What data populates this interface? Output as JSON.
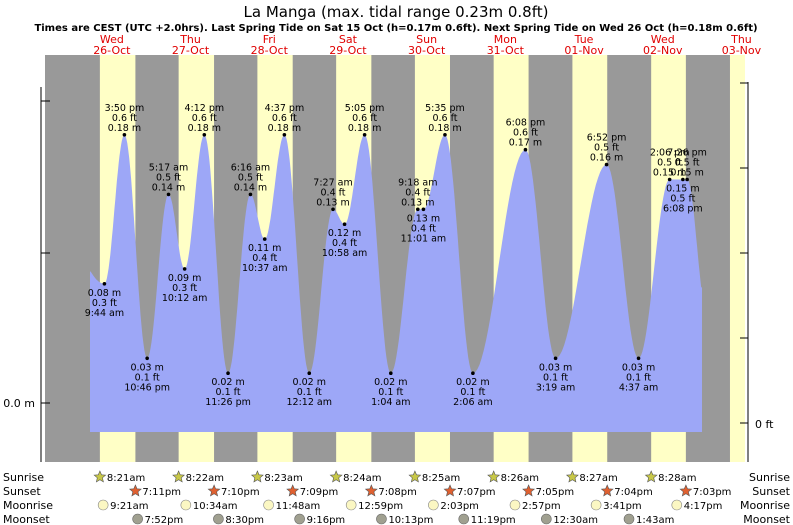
{
  "chart_data": {
    "type": "area",
    "title": "La Manga (max. tidal range 0.23m 0.8ft)",
    "subtitle": "Times are CEST (UTC +2.0hrs). Last Spring Tide on Sat 15 Oct (h=0.17m 0.6ft). Next Spring Tide on Wed 26 Oct (h=0.18m 0.6ft)",
    "days": [
      {
        "name": "Wed",
        "date": "26-Oct"
      },
      {
        "name": "Thu",
        "date": "27-Oct"
      },
      {
        "name": "Fri",
        "date": "28-Oct"
      },
      {
        "name": "Sat",
        "date": "29-Oct"
      },
      {
        "name": "Sun",
        "date": "30-Oct"
      },
      {
        "name": "Mon",
        "date": "31-Oct"
      },
      {
        "name": "Tue",
        "date": "01-Nov"
      },
      {
        "name": "Wed",
        "date": "02-Nov"
      },
      {
        "name": "Thu",
        "date": "03-Nov"
      }
    ],
    "y_left_label": "0.0 m",
    "y_right_label": "0 ft",
    "ylim_m": [
      -0.04,
      0.26
    ],
    "tides": [
      {
        "h": -10.5,
        "height_m": 0.16,
        "labelled": false
      },
      {
        "h": 9.733,
        "height_m": 0.08,
        "time": "9:44 am",
        "ft": "0.3 ft",
        "m": "0.08 m",
        "pos": "below"
      },
      {
        "h": 15.833,
        "height_m": 0.18,
        "time": "3:50 pm",
        "ft": "0.6 ft",
        "m": "0.18 m",
        "pos": "above"
      },
      {
        "h": 22.767,
        "height_m": 0.03,
        "time": "10:46 pm",
        "ft": "0.1 ft",
        "m": "0.03 m",
        "pos": "below"
      },
      {
        "h": 29.283,
        "height_m": 0.14,
        "time": "5:17 am",
        "ft": "0.5 ft",
        "m": "0.14 m",
        "pos": "above"
      },
      {
        "h": 34.2,
        "height_m": 0.09,
        "time": "10:12 am",
        "ft": "0.3 ft",
        "m": "0.09 m",
        "pos": "below"
      },
      {
        "h": 40.2,
        "height_m": 0.18,
        "time": "4:12 pm",
        "ft": "0.6 ft",
        "m": "0.18 m",
        "pos": "above"
      },
      {
        "h": 47.433,
        "height_m": 0.02,
        "time": "11:26 pm",
        "ft": "0.1 ft",
        "m": "0.02 m",
        "pos": "below"
      },
      {
        "h": 54.267,
        "height_m": 0.14,
        "time": "6:16 am",
        "ft": "0.5 ft",
        "m": "0.14 m",
        "pos": "above"
      },
      {
        "h": 58.617,
        "height_m": 0.11,
        "time": "10:37 am",
        "ft": "0.4 ft",
        "m": "0.11 m",
        "pos": "below"
      },
      {
        "h": 64.617,
        "height_m": 0.18,
        "time": "4:37 pm",
        "ft": "0.6 ft",
        "m": "0.18 m",
        "pos": "above"
      },
      {
        "h": 72.2,
        "height_m": 0.02,
        "time": "12:12 am",
        "ft": "0.1 ft",
        "m": "0.02 m",
        "pos": "below"
      },
      {
        "h": 79.45,
        "height_m": 0.13,
        "time": "7:27 am",
        "ft": "0.4 ft",
        "m": "0.13 m",
        "pos": "above"
      },
      {
        "h": 82.967,
        "height_m": 0.12,
        "time": "10:58 am",
        "ft": "0.4 ft",
        "m": "0.12 m",
        "pos": "below"
      },
      {
        "h": 89.083,
        "height_m": 0.18,
        "time": "5:05 pm",
        "ft": "0.6 ft",
        "m": "0.18 m",
        "pos": "above"
      },
      {
        "h": 97.067,
        "height_m": 0.02,
        "time": "1:04 am",
        "ft": "0.1 ft",
        "m": "0.02 m",
        "pos": "below"
      },
      {
        "h": 105.3,
        "height_m": 0.13,
        "time": "9:18 am",
        "ft": "0.4 ft",
        "m": "0.13 m",
        "pos": "above"
      },
      {
        "h": 107.017,
        "height_m": 0.13,
        "time": "11:01 am",
        "ft": "0.4 ft",
        "m": "0.13 m",
        "pos": "below"
      },
      {
        "h": 113.583,
        "height_m": 0.18,
        "time": "5:35 pm",
        "ft": "0.6 ft",
        "m": "0.18 m",
        "pos": "above"
      },
      {
        "h": 122.1,
        "height_m": 0.02,
        "time": "2:06 am",
        "ft": "0.1 ft",
        "m": "0.02 m",
        "pos": "below"
      },
      {
        "h": 138.133,
        "height_m": 0.17,
        "time": "6:08 pm",
        "ft": "0.6 ft",
        "m": "0.17 m",
        "pos": "above"
      },
      {
        "h": 147.317,
        "height_m": 0.03,
        "time": "3:19 am",
        "ft": "0.1 ft",
        "m": "0.03 m",
        "pos": "below"
      },
      {
        "h": 162.867,
        "height_m": 0.16,
        "time": "6:52 pm",
        "ft": "0.5 ft",
        "m": "0.16 m",
        "pos": "above"
      },
      {
        "h": 172.617,
        "height_m": 0.03,
        "time": "4:37 am",
        "ft": "0.1 ft",
        "m": "0.03 m",
        "pos": "below"
      },
      {
        "h": 182.1,
        "height_m": 0.15,
        "time": "2:06 pm",
        "ft": "0.5 ft",
        "m": "0.15 m",
        "pos": "above"
      },
      {
        "h": 186.133,
        "height_m": 0.15,
        "time": "6:08 pm",
        "ft": "0.5 ft",
        "m": "0.15 m",
        "pos": "below"
      },
      {
        "h": 187.433,
        "height_m": 0.15,
        "time": "7:26 pm",
        "ft": "0.5 ft",
        "m": "0.15 m",
        "pos": "above"
      },
      {
        "h": 193.5,
        "height_m": 0.06,
        "labelled": false
      }
    ],
    "sun": [
      {
        "day": 0,
        "rise": "8:21am",
        "set": "7:11pm"
      },
      {
        "day": 1,
        "rise": "8:22am",
        "set": "7:10pm"
      },
      {
        "day": 2,
        "rise": "8:23am",
        "set": "7:09pm"
      },
      {
        "day": 3,
        "rise": "8:24am",
        "set": "7:08pm"
      },
      {
        "day": 4,
        "rise": "8:25am",
        "set": "7:07pm"
      },
      {
        "day": 5,
        "rise": "8:26am",
        "set": "7:05pm"
      },
      {
        "day": 6,
        "rise": "8:27am",
        "set": "7:04pm"
      },
      {
        "day": 7,
        "rise": "8:28am",
        "set": "7:03pm"
      }
    ],
    "moonrise": [
      "9:21am",
      "10:34am",
      "11:48am",
      "12:59pm",
      "2:03pm",
      "2:57pm",
      "3:41pm",
      "4:17pm"
    ],
    "moonset": [
      "7:52pm",
      "8:30pm",
      "9:16pm",
      "10:13pm",
      "11:19pm",
      "12:30am",
      "1:43am"
    ],
    "row_labels": {
      "sunrise": "Sunrise",
      "sunset": "Sunset",
      "moonrise": "Moonrise",
      "moonset": "Moonset"
    },
    "colors": {
      "night": "#999999",
      "day": "#ffffc6",
      "water": "#9da7f7",
      "day_text": "#e00000",
      "sun_icon": "#c8c848",
      "sunset_icon": "#e06030",
      "moonrise_icon": "#fbf7c3",
      "moonset_icon": "#a0a090"
    }
  }
}
